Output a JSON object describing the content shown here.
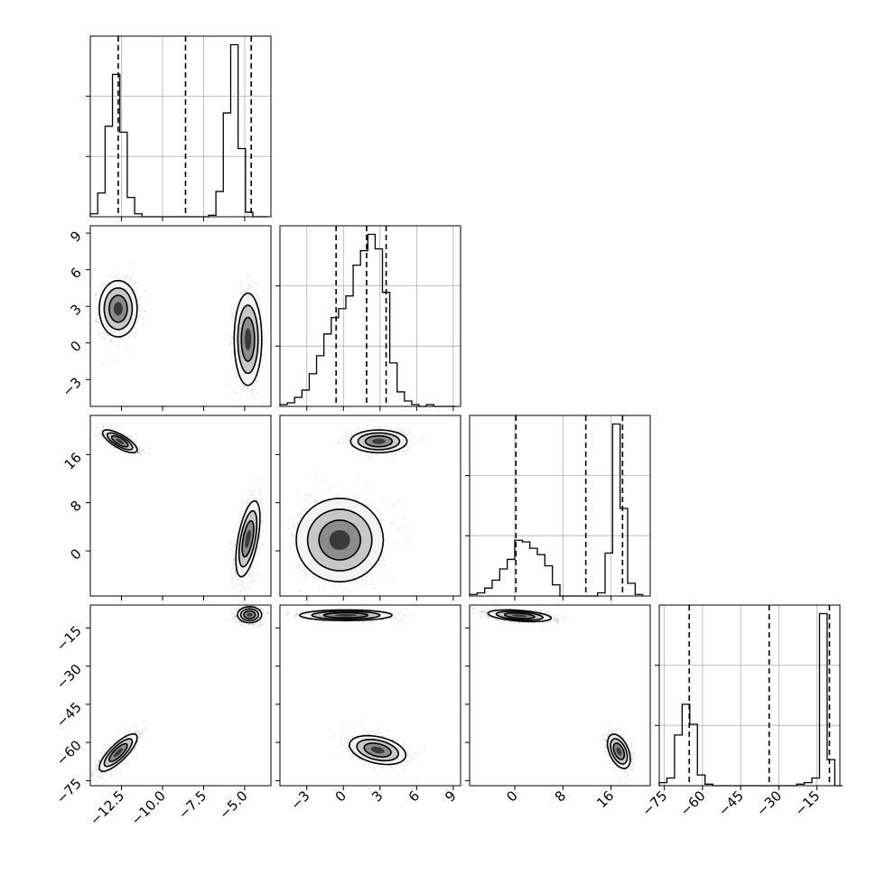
{
  "chart_data": {
    "type": "corner",
    "title": "",
    "parameters": [
      {
        "name": "",
        "range": [
          -14.4,
          -3.4
        ],
        "ticks": [
          -12.5,
          -10.0,
          -7.5,
          -5.0
        ],
        "tick_labels": [
          "−12.5",
          "−10.0",
          "−7.5",
          "−5.0"
        ],
        "quantiles": [
          -12.7,
          -8.6,
          -4.6
        ]
      },
      {
        "name": "",
        "range": [
          -5.2,
          9.6
        ],
        "ticks": [
          -3,
          0,
          3,
          6,
          9
        ],
        "tick_labels": [
          "−3",
          "0",
          "3",
          "6",
          "9"
        ],
        "quantiles": [
          -0.6,
          1.9,
          3.5
        ]
      },
      {
        "name": "",
        "range": [
          -7.5,
          22.5
        ],
        "ticks": [
          0,
          8,
          16
        ],
        "tick_labels": [
          "0",
          "8",
          "16"
        ],
        "quantiles": [
          0.2,
          11.8,
          17.9
        ]
      },
      {
        "name": "",
        "range": [
          -77,
          -6
        ],
        "ticks": [
          -75,
          -60,
          -45,
          -30,
          -15
        ],
        "tick_labels": [
          "−75",
          "−60",
          "−45",
          "−30",
          "−15"
        ],
        "quantiles": [
          -65.2,
          -33.8,
          -10.1
        ]
      }
    ],
    "histograms": [
      {
        "param": 0,
        "bins": [
          -14.4,
          -13.95,
          -13.5,
          -13.05,
          -12.6,
          -12.15,
          -11.7,
          -11.25,
          -10.8,
          -10.35,
          -9.9,
          -9.45,
          -9.0,
          -8.55,
          -8.1,
          -7.65,
          -7.2,
          -6.75,
          -6.3,
          -5.85,
          -5.4,
          -4.95,
          -4.5,
          -4.05,
          -3.6
        ],
        "counts": [
          2,
          16,
          61,
          96,
          57,
          13,
          2,
          0,
          0,
          0,
          0,
          0,
          0,
          0,
          0,
          0,
          1,
          17,
          70,
          116,
          46,
          3,
          0,
          0
        ]
      },
      {
        "param": 1,
        "bins": [
          -5.2,
          -4.6,
          -4.0,
          -3.4,
          -2.8,
          -2.2,
          -1.6,
          -1.0,
          -0.4,
          0.2,
          0.8,
          1.4,
          2.0,
          2.6,
          3.2,
          3.8,
          4.4,
          5.0,
          5.6,
          6.2,
          6.8,
          7.4,
          8.0,
          8.6,
          9.2
        ],
        "counts": [
          1,
          2,
          5,
          9,
          18,
          28,
          40,
          49,
          54,
          61,
          78,
          86,
          95,
          87,
          63,
          24,
          8,
          3,
          1,
          0,
          1,
          0,
          0,
          0
        ]
      },
      {
        "param": 2,
        "bins": [
          -7.5,
          -6.25,
          -5.0,
          -3.75,
          -2.5,
          -1.25,
          0.0,
          1.25,
          2.5,
          3.75,
          5.0,
          6.25,
          7.5,
          8.75,
          10.0,
          11.25,
          12.5,
          13.75,
          15.0,
          16.25,
          17.5,
          18.75,
          20.0,
          21.25
        ],
        "counts": [
          1,
          2,
          5,
          10,
          17,
          23,
          35,
          34,
          30,
          26,
          19,
          7,
          0,
          0,
          0,
          0,
          0,
          2,
          27,
          108,
          55,
          8,
          1
        ]
      },
      {
        "param": 3,
        "bins": [
          -77,
          -74,
          -71,
          -68,
          -65,
          -62,
          -59,
          -56,
          -53,
          -50,
          -47,
          -44,
          -41,
          -38,
          -35,
          -32,
          -29,
          -26,
          -23,
          -20,
          -17,
          -14,
          -11,
          -8,
          -5
        ],
        "counts": [
          2,
          5,
          33,
          53,
          40,
          7,
          1,
          0,
          0,
          0,
          0,
          0,
          0,
          0,
          0,
          0,
          0,
          0,
          1,
          2,
          5,
          112,
          17,
          0
        ]
      }
    ],
    "scatter_panels": [
      {
        "x": 0,
        "y": 1,
        "modes": [
          {
            "center": [
              -12.7,
              2.8
            ],
            "sd": [
              0.55,
              1.1
            ],
            "rho": 0.0
          },
          {
            "center": [
              -4.8,
              0.3
            ],
            "sd": [
              0.4,
              1.8
            ],
            "rho": 0.0
          }
        ]
      },
      {
        "x": 0,
        "y": 2,
        "modes": [
          {
            "center": [
              -12.6,
              18.2
            ],
            "sd": [
              0.5,
              0.9
            ],
            "rho": -0.75
          },
          {
            "center": [
              -4.8,
              2.0
            ],
            "sd": [
              0.35,
              3.0
            ],
            "rho": 0.55
          }
        ]
      },
      {
        "x": 0,
        "y": 3,
        "modes": [
          {
            "center": [
              -4.7,
              -9.8
            ],
            "sd": [
              0.35,
              1.5
            ],
            "rho": 0.0
          },
          {
            "center": [
              -12.7,
              -64.0
            ],
            "sd": [
              0.55,
              3.5
            ],
            "rho": 0.8
          }
        ]
      },
      {
        "x": 1,
        "y": 2,
        "modes": [
          {
            "center": [
              2.9,
              18.2
            ],
            "sd": [
              1.1,
              0.9
            ],
            "rho": 0.0
          },
          {
            "center": [
              -0.3,
              1.8
            ],
            "sd": [
              1.7,
              3.3
            ],
            "rho": 0.0
          }
        ]
      },
      {
        "x": 1,
        "y": 3,
        "modes": [
          {
            "center": [
              0.2,
              -10.0
            ],
            "sd": [
              1.8,
              1.0
            ],
            "rho": 0.0
          },
          {
            "center": [
              2.8,
              -63.0
            ],
            "sd": [
              1.1,
              2.7
            ],
            "rho": -0.35
          }
        ]
      },
      {
        "x": 2,
        "y": 3,
        "modes": [
          {
            "center": [
              0.8,
              -10.2
            ],
            "sd": [
              2.5,
              1.1
            ],
            "rho": -0.4
          },
          {
            "center": [
              17.3,
              -63.5
            ],
            "sd": [
              0.9,
              3.2
            ],
            "rho": -0.45
          }
        ]
      }
    ],
    "grid": true
  }
}
